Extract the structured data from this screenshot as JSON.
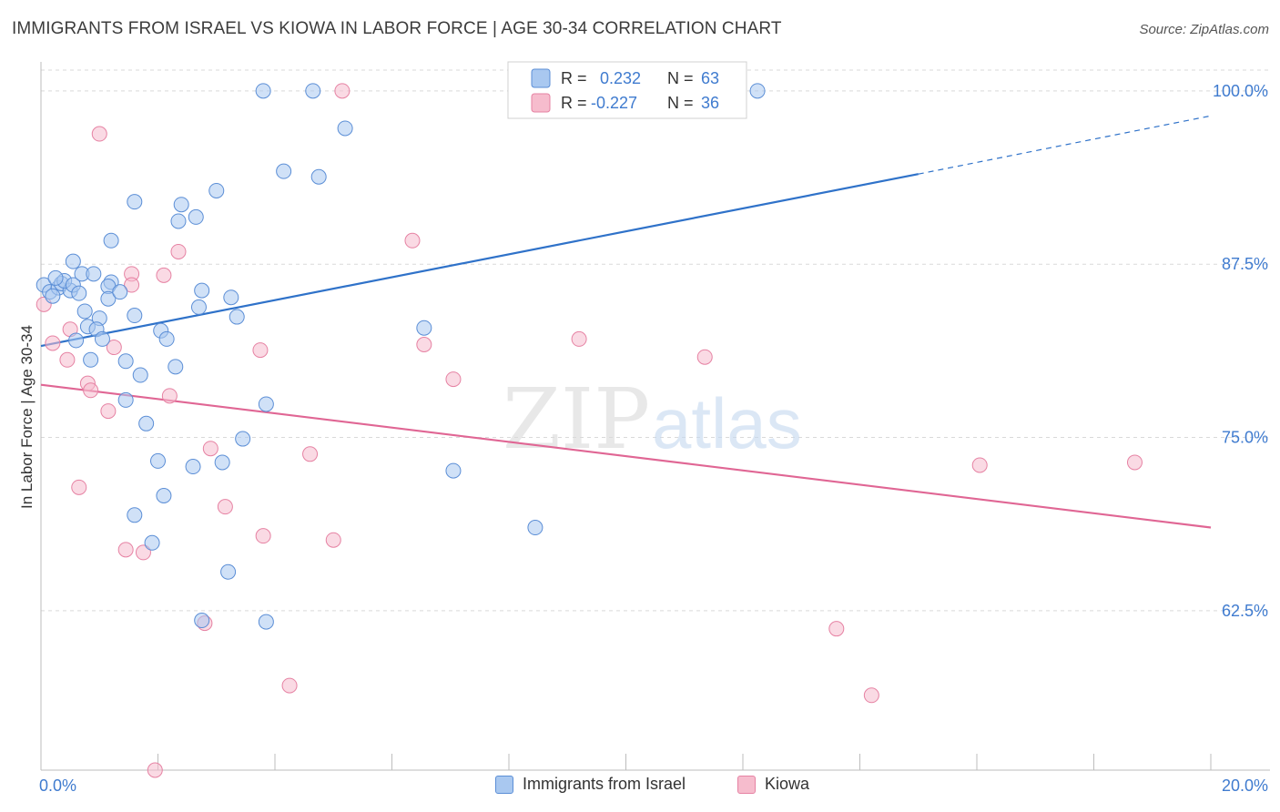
{
  "title": "IMMIGRANTS FROM ISRAEL VS KIOWA IN LABOR FORCE | AGE 30-34 CORRELATION CHART",
  "source": "Source: ZipAtlas.com",
  "watermark": {
    "zip": "ZIP",
    "atlas": "atlas"
  },
  "legend_top": [
    {
      "r_label": "R =",
      "r_value": "0.232",
      "n_label": "N =",
      "n_value": "63"
    },
    {
      "r_label": "R =",
      "r_value": "-0.227",
      "n_label": "N =",
      "n_value": "36"
    }
  ],
  "legend_bottom": [
    "Immigrants from Israel",
    "Kiowa"
  ],
  "colors": {
    "blue_fill": "#a9c8f0",
    "blue_stroke": "#5b8ed6",
    "blue_line": "#2f72c9",
    "pink_fill": "#f6bccd",
    "pink_stroke": "#e682a3",
    "pink_line": "#e06694",
    "tick_label": "#3f7bcf",
    "grid": "#d9d9d9"
  },
  "chart_data": {
    "type": "scatter",
    "title": "IMMIGRANTS FROM ISRAEL VS KIOWA IN LABOR FORCE | AGE 30-34 CORRELATION CHART",
    "xlabel": "",
    "ylabel": "In Labor Force | Age 30-34",
    "xlim": [
      0,
      20
    ],
    "ylim": [
      51,
      101.5
    ],
    "x_tick_labels": [
      "0.0%",
      "20.0%"
    ],
    "y_ticks": [
      62.5,
      75.0,
      87.5,
      100.0
    ],
    "y_tick_labels": [
      "62.5%",
      "75.0%",
      "87.5%",
      "100.0%"
    ],
    "grid": true,
    "legend_position": "top-center",
    "series": [
      {
        "name": "Immigrants from Israel",
        "color": "#a9c8f0",
        "trend": {
          "x0": 0,
          "y0": 81.6,
          "x1": 15,
          "y1": 94.0,
          "dashed_to_x": 20,
          "dashed_to_y": 98.2
        },
        "points": [
          [
            0.05,
            86.0
          ],
          [
            0.15,
            85.5
          ],
          [
            0.3,
            85.8
          ],
          [
            0.35,
            86.1
          ],
          [
            0.2,
            85.2
          ],
          [
            0.5,
            85.6
          ],
          [
            0.4,
            86.3
          ],
          [
            0.55,
            86.0
          ],
          [
            0.7,
            86.8
          ],
          [
            0.55,
            87.7
          ],
          [
            0.9,
            86.8
          ],
          [
            1.2,
            86.2
          ],
          [
            1.15,
            85.9
          ],
          [
            1.15,
            85.0
          ],
          [
            0.75,
            84.1
          ],
          [
            0.8,
            83.0
          ],
          [
            1.0,
            83.6
          ],
          [
            1.6,
            83.8
          ],
          [
            0.95,
            82.8
          ],
          [
            0.6,
            82.0
          ],
          [
            1.05,
            82.1
          ],
          [
            0.85,
            80.6
          ],
          [
            1.45,
            80.5
          ],
          [
            1.7,
            79.5
          ],
          [
            1.45,
            77.7
          ],
          [
            1.8,
            76.0
          ],
          [
            2.05,
            82.7
          ],
          [
            2.15,
            82.1
          ],
          [
            2.3,
            80.1
          ],
          [
            2.75,
            85.6
          ],
          [
            2.7,
            84.4
          ],
          [
            3.25,
            85.1
          ],
          [
            3.35,
            83.7
          ],
          [
            1.6,
            92.0
          ],
          [
            2.4,
            91.8
          ],
          [
            2.35,
            90.6
          ],
          [
            2.65,
            90.9
          ],
          [
            3.0,
            92.8
          ],
          [
            1.2,
            89.2
          ],
          [
            2.0,
            73.3
          ],
          [
            2.6,
            72.9
          ],
          [
            3.1,
            73.2
          ],
          [
            3.45,
            74.9
          ],
          [
            3.85,
            77.4
          ],
          [
            2.1,
            70.8
          ],
          [
            1.6,
            69.4
          ],
          [
            1.9,
            67.4
          ],
          [
            3.2,
            65.3
          ],
          [
            2.75,
            61.8
          ],
          [
            3.85,
            61.7
          ],
          [
            3.8,
            100.0
          ],
          [
            4.65,
            100.0
          ],
          [
            8.55,
            100.0
          ],
          [
            12.25,
            100.0
          ],
          [
            5.2,
            97.3
          ],
          [
            4.15,
            94.2
          ],
          [
            4.75,
            93.8
          ],
          [
            6.55,
            82.9
          ],
          [
            7.05,
            72.6
          ],
          [
            8.45,
            68.5
          ],
          [
            1.35,
            85.5
          ],
          [
            0.25,
            86.5
          ],
          [
            0.65,
            85.4
          ]
        ]
      },
      {
        "name": "Kiowa",
        "color": "#f6bccd",
        "trend": {
          "x0": 0,
          "y0": 78.8,
          "x1": 20,
          "y1": 68.5
        },
        "points": [
          [
            0.05,
            84.6
          ],
          [
            1.0,
            96.9
          ],
          [
            1.55,
            86.8
          ],
          [
            1.55,
            86.0
          ],
          [
            2.1,
            86.7
          ],
          [
            2.35,
            88.4
          ],
          [
            0.2,
            81.8
          ],
          [
            0.45,
            80.6
          ],
          [
            0.5,
            82.8
          ],
          [
            1.25,
            81.5
          ],
          [
            0.8,
            78.9
          ],
          [
            0.85,
            78.4
          ],
          [
            1.15,
            76.9
          ],
          [
            2.2,
            78.0
          ],
          [
            0.65,
            71.4
          ],
          [
            1.45,
            66.9
          ],
          [
            1.75,
            66.7
          ],
          [
            2.9,
            74.2
          ],
          [
            3.15,
            70.0
          ],
          [
            3.75,
            81.3
          ],
          [
            3.8,
            67.9
          ],
          [
            4.6,
            73.8
          ],
          [
            5.0,
            67.6
          ],
          [
            2.8,
            61.6
          ],
          [
            4.25,
            57.1
          ],
          [
            1.95,
            51.0
          ],
          [
            5.15,
            100.0
          ],
          [
            6.35,
            89.2
          ],
          [
            6.55,
            81.7
          ],
          [
            7.05,
            79.2
          ],
          [
            9.2,
            82.1
          ],
          [
            11.35,
            80.8
          ],
          [
            16.05,
            73.0
          ],
          [
            18.7,
            73.2
          ],
          [
            13.6,
            61.2
          ],
          [
            14.2,
            56.4
          ]
        ]
      }
    ]
  }
}
